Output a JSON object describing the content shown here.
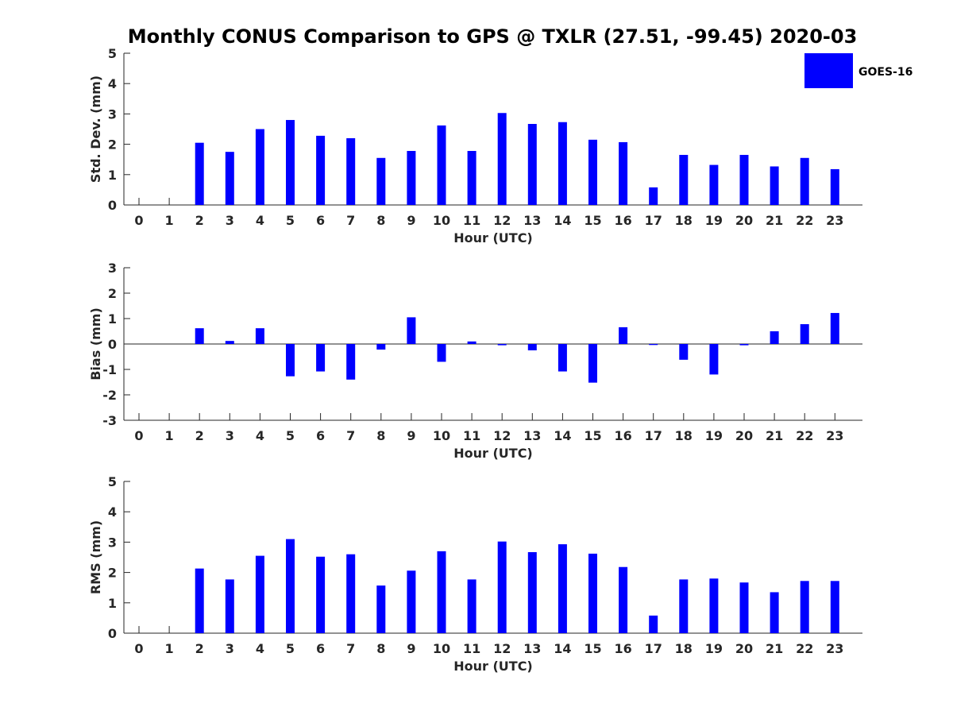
{
  "title": "Monthly CONUS Comparison to GPS @ TXLR (27.51, -99.45) 2020-03",
  "legend": {
    "label": "GOES-16",
    "color": "#0000ff"
  },
  "chart_data": [
    {
      "type": "bar",
      "name": "std",
      "title": "Monthly CONUS Comparison to GPS @ TXLR (27.51, -99.45) 2020-03",
      "xlabel": "Hour (UTC)",
      "ylabel": "Std. Dev. (mm)",
      "ylim": [
        0,
        5
      ],
      "yticks": [
        0,
        1,
        2,
        3,
        4,
        5
      ],
      "categories": [
        "0",
        "1",
        "2",
        "3",
        "4",
        "5",
        "6",
        "7",
        "8",
        "9",
        "10",
        "11",
        "12",
        "13",
        "14",
        "15",
        "16",
        "17",
        "18",
        "19",
        "20",
        "21",
        "22",
        "23"
      ],
      "series": [
        {
          "name": "GOES-16",
          "values": [
            null,
            null,
            2.05,
            1.75,
            2.5,
            2.8,
            2.28,
            2.2,
            1.55,
            1.78,
            2.62,
            1.78,
            3.03,
            2.67,
            2.73,
            2.15,
            2.07,
            0.58,
            1.65,
            1.32,
            1.65,
            1.27,
            1.55,
            1.18
          ]
        }
      ]
    },
    {
      "type": "bar",
      "name": "bias",
      "xlabel": "Hour (UTC)",
      "ylabel": "Bias (mm)",
      "ylim": [
        -3,
        3
      ],
      "yticks": [
        -3,
        -2,
        -1,
        0,
        1,
        2,
        3
      ],
      "categories": [
        "0",
        "1",
        "2",
        "3",
        "4",
        "5",
        "6",
        "7",
        "8",
        "9",
        "10",
        "11",
        "12",
        "13",
        "14",
        "15",
        "16",
        "17",
        "18",
        "19",
        "20",
        "21",
        "22",
        "23"
      ],
      "series": [
        {
          "name": "GOES-16",
          "values": [
            null,
            null,
            0.62,
            0.12,
            0.62,
            -1.27,
            -1.08,
            -1.4,
            -0.22,
            1.05,
            -0.7,
            0.1,
            -0.05,
            -0.25,
            -1.08,
            -1.52,
            0.66,
            -0.04,
            -0.62,
            -1.2,
            -0.05,
            0.5,
            0.78,
            1.22
          ]
        }
      ]
    },
    {
      "type": "bar",
      "name": "rms",
      "xlabel": "Hour (UTC)",
      "ylabel": "RMS (mm)",
      "ylim": [
        0,
        5
      ],
      "yticks": [
        0,
        1,
        2,
        3,
        4,
        5
      ],
      "categories": [
        "0",
        "1",
        "2",
        "3",
        "4",
        "5",
        "6",
        "7",
        "8",
        "9",
        "10",
        "11",
        "12",
        "13",
        "14",
        "15",
        "16",
        "17",
        "18",
        "19",
        "20",
        "21",
        "22",
        "23"
      ],
      "series": [
        {
          "name": "GOES-16",
          "values": [
            null,
            null,
            2.13,
            1.77,
            2.55,
            3.1,
            2.52,
            2.6,
            1.57,
            2.06,
            2.7,
            1.77,
            3.02,
            2.67,
            2.93,
            2.62,
            2.18,
            0.58,
            1.77,
            1.8,
            1.67,
            1.35,
            1.72,
            1.72
          ]
        }
      ]
    }
  ]
}
